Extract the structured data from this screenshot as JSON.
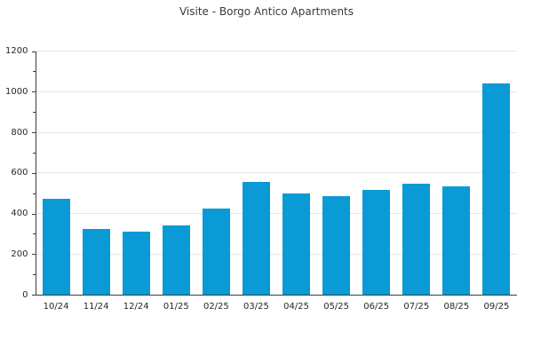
{
  "chart_data": {
    "type": "bar",
    "title": "Visite - Borgo Antico Apartments",
    "categories": [
      "10/24",
      "11/24",
      "12/24",
      "01/25",
      "02/25",
      "03/25",
      "04/25",
      "05/25",
      "06/25",
      "07/25",
      "08/25",
      "09/25"
    ],
    "values": [
      470,
      325,
      310,
      340,
      425,
      555,
      500,
      485,
      515,
      545,
      535,
      1040
    ],
    "xlabel": "",
    "ylabel": "",
    "ylim": [
      0,
      1200
    ],
    "yticks": [
      0,
      200,
      400,
      600,
      800,
      1000,
      1200
    ],
    "ytick_step": 200,
    "yminor_step": 100,
    "grid": true,
    "legend": false,
    "colors": {
      "bar": "#0a9ad5",
      "gridline": "#e6e6e6",
      "spine": "#3c3c3c",
      "tick_label": "#262626",
      "title": "#3a3a3a"
    }
  }
}
